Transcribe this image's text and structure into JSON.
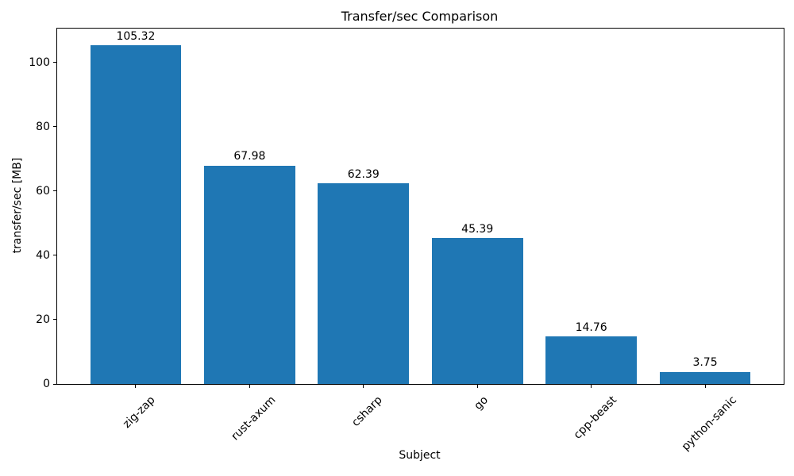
{
  "chart_data": {
    "type": "bar",
    "title": "Transfer/sec Comparison",
    "xlabel": "Subject",
    "ylabel": "transfer/sec [MB]",
    "categories": [
      "zig-zap",
      "rust-axum",
      "csharp",
      "go",
      "cpp-beast",
      "python-sanic"
    ],
    "values": [
      105.32,
      67.98,
      62.39,
      45.39,
      14.76,
      3.75
    ],
    "value_labels": [
      "105.32",
      "67.98",
      "62.39",
      "45.39",
      "14.76",
      "3.75"
    ],
    "yticks": [
      0,
      20,
      40,
      60,
      80,
      100
    ],
    "ytick_labels": [
      "0",
      "20",
      "40",
      "60",
      "80",
      "100"
    ],
    "ylim": [
      0,
      110.6
    ],
    "bar_color": "#1f77b4",
    "axis_color": "#000000",
    "text_color": "#000000",
    "background_color": "#ffffff",
    "grid": false,
    "legend_position": "none",
    "bar_width_fraction": 0.8,
    "x_tick_rotation_deg": 45
  }
}
